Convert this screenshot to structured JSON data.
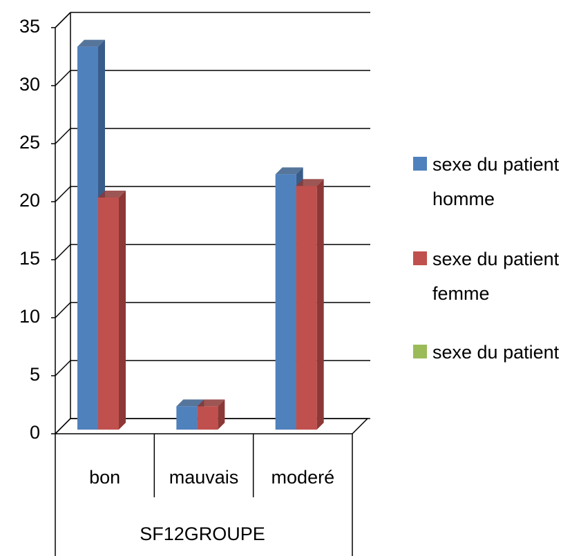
{
  "chart_data": {
    "type": "bar3d",
    "categories": [
      "bon",
      "mauvais",
      "moderé"
    ],
    "x_label": "SF12GROUPE",
    "series": [
      {
        "name": "sexe du patient homme",
        "color": "#4f81bd",
        "side_color": "#385d8a",
        "values": [
          33,
          2,
          22
        ]
      },
      {
        "name": "sexe du patient femme",
        "color": "#c0504d",
        "side_color": "#8c3836",
        "values": [
          20,
          2,
          21
        ]
      },
      {
        "name": "sexe du patient",
        "color": "#9bbb59",
        "side_color": "#71893f",
        "values": [
          null,
          null,
          null
        ]
      }
    ],
    "ylim": [
      0,
      35
    ],
    "yticks": [
      0,
      5,
      10,
      15,
      20,
      25,
      30,
      35
    ],
    "grid": true,
    "legend": "right"
  }
}
